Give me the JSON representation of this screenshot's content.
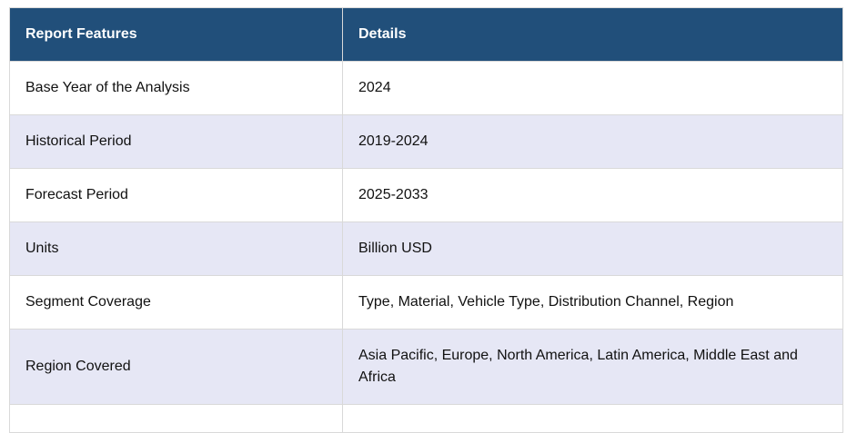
{
  "table": {
    "headers": [
      "Report Features",
      "Details"
    ],
    "rows": [
      {
        "feature": "Base Year of the Analysis",
        "details": "2024"
      },
      {
        "feature": "Historical Period",
        "details": "2019-2024"
      },
      {
        "feature": "Forecast Period",
        "details": "2025-2033"
      },
      {
        "feature": "Units",
        "details": "Billion USD"
      },
      {
        "feature": "Segment Coverage",
        "details": "Type, Material, Vehicle Type, Distribution Channel, Region"
      },
      {
        "feature": "Region Covered",
        "details": "Asia Pacific, Europe, North America, Latin America, Middle East and Africa"
      },
      {
        "feature": "",
        "details": ""
      }
    ]
  }
}
